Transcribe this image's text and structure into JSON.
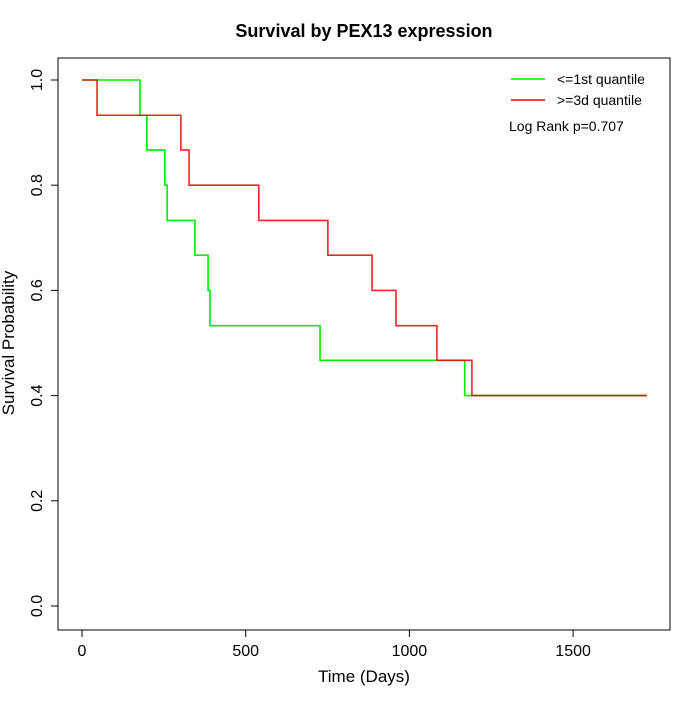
{
  "chart_data": {
    "type": "line",
    "subtype": "kaplan-meier-step",
    "title": "Survival by PEX13 expression",
    "xlabel": "Time (Days)",
    "ylabel": "Survival Probability",
    "xlim": [
      0,
      1730
    ],
    "ylim": [
      0,
      1
    ],
    "xticks": [
      0,
      500,
      1000,
      1500
    ],
    "yticks": [
      0.0,
      0.2,
      0.4,
      0.6,
      0.8,
      1.0
    ],
    "xtick_labels": [
      "0",
      "500",
      "1000",
      "1500"
    ],
    "ytick_labels": [
      "0.0",
      "0.2",
      "0.4",
      "0.6",
      "0.8",
      "1.0"
    ],
    "grid": false,
    "legend_position": "top-right",
    "annotation": "Log Rank p=0.707",
    "series": [
      {
        "name": "<=1st quantile",
        "color": "#00ee00",
        "times": [
          0,
          177,
          198,
          253,
          260,
          345,
          385,
          391,
          727,
          1169,
          1725
        ],
        "survival": [
          1.0,
          0.933,
          0.867,
          0.8,
          0.733,
          0.667,
          0.6,
          0.533,
          0.467,
          0.4,
          0.4
        ]
      },
      {
        "name": ">=3d quantile",
        "color": "#ee0000",
        "times": [
          0,
          46,
          302,
          327,
          540,
          751,
          886,
          959,
          1084,
          1191,
          1725
        ],
        "survival": [
          1.0,
          0.933,
          0.867,
          0.8,
          0.733,
          0.667,
          0.6,
          0.533,
          0.467,
          0.4,
          0.4
        ]
      }
    ]
  }
}
